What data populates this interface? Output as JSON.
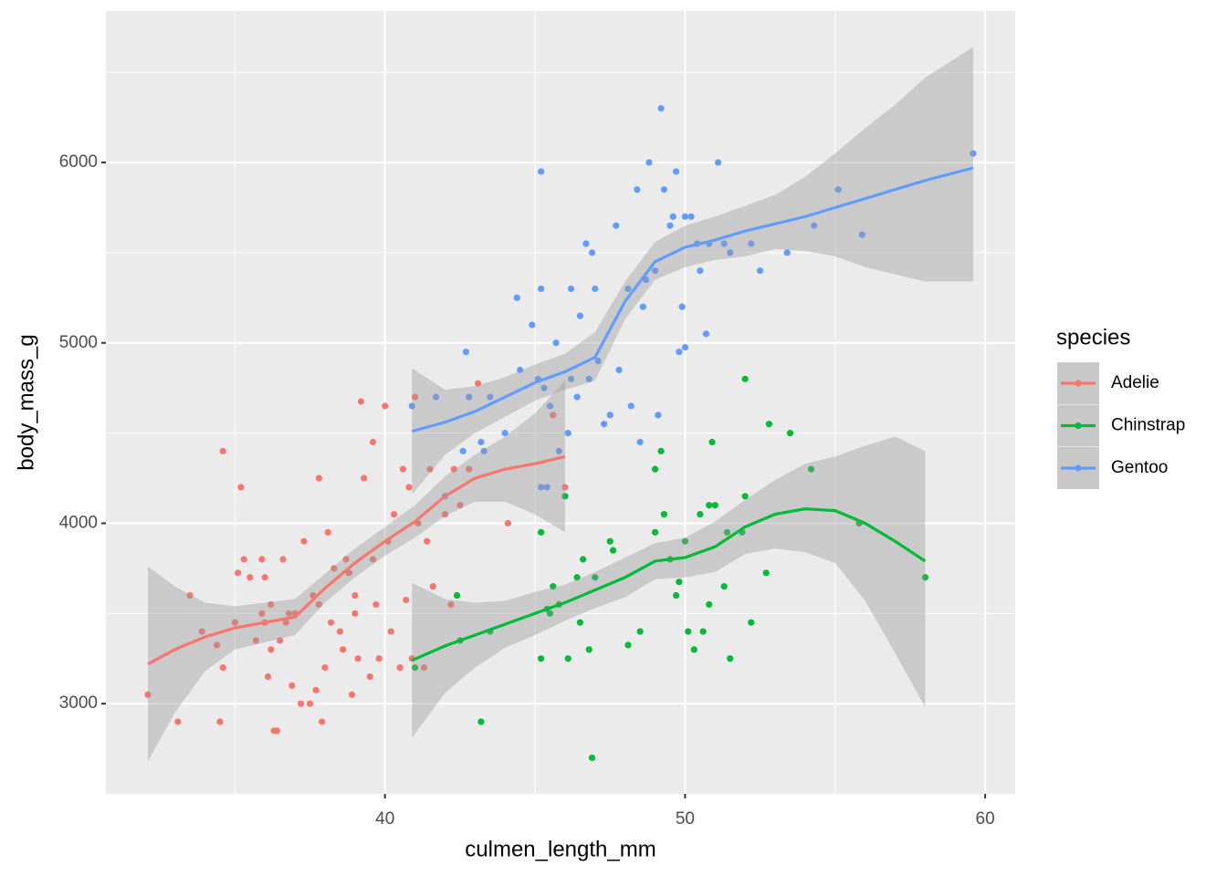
{
  "chart_data": {
    "type": "scatter",
    "xlabel": "culmen_length_mm",
    "ylabel": "body_mass_g",
    "legend_title": "species",
    "legend": "right",
    "xlim": [
      30.7,
      61.0
    ],
    "ylim": [
      2500,
      6840
    ],
    "xticks": [
      40,
      50,
      60
    ],
    "yticks": [
      3000,
      4000,
      5000,
      6000
    ],
    "xminor": [
      35,
      45,
      55
    ],
    "yminor": [
      3500,
      4500,
      5500,
      6500
    ],
    "grid": true,
    "series": [
      {
        "name": "Adelie",
        "color": "#F8766D",
        "x": [
          32.1,
          33.1,
          33.5,
          33.9,
          34.4,
          34.5,
          34.6,
          34.6,
          35.0,
          35.1,
          35.2,
          35.3,
          35.5,
          35.7,
          35.9,
          35.9,
          36.0,
          36.0,
          36.1,
          36.2,
          36.2,
          36.4,
          36.5,
          36.6,
          36.7,
          36.8,
          36.9,
          37.0,
          37.2,
          37.3,
          37.5,
          37.6,
          37.7,
          37.8,
          37.8,
          37.9,
          38.0,
          38.1,
          38.2,
          38.3,
          38.5,
          38.6,
          38.7,
          38.8,
          39.0,
          39.0,
          39.1,
          39.2,
          39.3,
          39.5,
          39.6,
          39.6,
          39.7,
          39.8,
          40.0,
          40.1,
          40.2,
          40.3,
          40.5,
          40.6,
          40.7,
          40.8,
          40.9,
          41.0,
          41.1,
          41.3,
          41.4,
          41.5,
          41.6,
          42.0,
          42.2,
          42.3,
          42.5,
          42.8,
          43.1,
          44.1,
          45.6,
          46.0,
          36.3,
          38.9
        ],
        "y": [
          3050,
          2900,
          3600,
          3400,
          3325,
          2900,
          3200,
          4400,
          3450,
          3725,
          4200,
          3800,
          3700,
          3350,
          3500,
          3800,
          3450,
          3700,
          3150,
          3300,
          3550,
          2850,
          3350,
          3800,
          3450,
          3500,
          3100,
          3500,
          3000,
          3900,
          3000,
          3600,
          3075,
          4250,
          3550,
          2900,
          3200,
          3950,
          3450,
          3750,
          3400,
          3300,
          3800,
          3725,
          3600,
          3500,
          3250,
          4675,
          4250,
          3150,
          4450,
          3800,
          3550,
          3250,
          4650,
          3900,
          3400,
          4050,
          3200,
          4300,
          3575,
          4200,
          3250,
          4700,
          4000,
          3200,
          3900,
          4300,
          3650,
          4050,
          3550,
          4300,
          4100,
          4300,
          4775,
          4000,
          4600,
          4200,
          2850,
          3050
        ],
        "fit": {
          "x": [
            32.1,
            33,
            34,
            35,
            36,
            37,
            38,
            39,
            40,
            41,
            42,
            43,
            44,
            45,
            46
          ],
          "y": [
            3220,
            3300,
            3370,
            3420,
            3450,
            3480,
            3640,
            3780,
            3900,
            4010,
            4150,
            4250,
            4300,
            4330,
            4370
          ],
          "lower": [
            2680,
            2950,
            3180,
            3300,
            3340,
            3380,
            3560,
            3700,
            3820,
            3920,
            4040,
            4120,
            4120,
            4050,
            3950
          ],
          "upper": [
            3760,
            3650,
            3560,
            3540,
            3560,
            3580,
            3720,
            3860,
            3980,
            4100,
            4260,
            4380,
            4480,
            4610,
            4790
          ]
        }
      },
      {
        "name": "Chinstrap",
        "color": "#00BA38",
        "x": [
          41.0,
          42.4,
          42.5,
          43.2,
          43.5,
          45.2,
          45.2,
          45.5,
          45.6,
          45.8,
          46.0,
          46.1,
          46.4,
          46.5,
          46.6,
          46.8,
          46.9,
          47.0,
          47.5,
          47.6,
          48.1,
          48.5,
          49.0,
          49.2,
          49.5,
          49.7,
          49.8,
          50.0,
          50.1,
          50.3,
          50.5,
          50.6,
          50.8,
          50.8,
          51.0,
          51.3,
          51.4,
          51.5,
          51.9,
          52.0,
          52.0,
          52.2,
          52.7,
          52.8,
          53.5,
          54.2,
          55.8,
          58.0,
          49.0,
          49.3,
          45.4,
          50.9
        ],
        "y": [
          3200,
          3600,
          3350,
          2900,
          3400,
          3950,
          3250,
          3500,
          3650,
          3550,
          4150,
          3250,
          3700,
          3450,
          3800,
          3300,
          2700,
          3700,
          3900,
          3850,
          3325,
          3400,
          3950,
          4400,
          3800,
          3600,
          3675,
          3900,
          3400,
          3300,
          4050,
          3400,
          4100,
          3550,
          4100,
          3650,
          3950,
          3250,
          3950,
          4800,
          4150,
          3450,
          3725,
          4550,
          4500,
          4300,
          4000,
          3700,
          4300,
          4050,
          3525,
          4450
        ],
        "fit": {
          "x": [
            40.9,
            42,
            43,
            44,
            45,
            46,
            47,
            48,
            49,
            50,
            51,
            52,
            53,
            54,
            55,
            56,
            57,
            58
          ],
          "y": [
            3240,
            3320,
            3380,
            3440,
            3500,
            3560,
            3630,
            3700,
            3790,
            3810,
            3870,
            3980,
            4050,
            4080,
            4070,
            4000,
            3900,
            3790
          ],
          "lower": [
            2810,
            3060,
            3200,
            3310,
            3380,
            3460,
            3530,
            3590,
            3690,
            3700,
            3730,
            3830,
            3860,
            3840,
            3780,
            3570,
            3280,
            2980
          ],
          "upper": [
            3670,
            3580,
            3560,
            3570,
            3620,
            3660,
            3730,
            3810,
            3890,
            3920,
            4010,
            4130,
            4240,
            4330,
            4370,
            4430,
            4480,
            4400
          ]
        }
      },
      {
        "name": "Gentoo",
        "color": "#619CFF",
        "x": [
          40.9,
          41.7,
          42.0,
          42.6,
          42.7,
          42.8,
          43.2,
          43.3,
          43.5,
          44.0,
          44.4,
          44.5,
          44.9,
          45.1,
          45.2,
          45.2,
          45.2,
          45.3,
          45.4,
          45.5,
          45.7,
          45.8,
          46.1,
          46.2,
          46.2,
          46.4,
          46.5,
          46.8,
          46.9,
          47.1,
          47.3,
          47.5,
          47.7,
          47.8,
          48.1,
          48.2,
          48.4,
          48.5,
          48.7,
          48.8,
          49.0,
          49.1,
          49.2,
          49.3,
          49.5,
          49.6,
          49.7,
          49.9,
          50.0,
          50.2,
          50.4,
          50.5,
          50.7,
          50.8,
          51.1,
          51.3,
          51.5,
          52.2,
          52.5,
          53.4,
          54.3,
          55.1,
          55.9,
          59.6,
          50.0,
          48.6,
          47.0,
          46.7,
          49.8
        ],
        "y": [
          4650,
          4700,
          4150,
          4400,
          4950,
          4700,
          4450,
          4400,
          4700,
          4500,
          5250,
          4850,
          5100,
          4800,
          5950,
          5300,
          4200,
          4750,
          4200,
          4650,
          5000,
          4400,
          4500,
          4800,
          5300,
          4700,
          5150,
          4800,
          5500,
          4900,
          4550,
          4600,
          5650,
          4850,
          5300,
          4650,
          5850,
          4450,
          5350,
          6000,
          5400,
          4600,
          6300,
          5850,
          5650,
          5700,
          5950,
          5200,
          5700,
          5700,
          5550,
          5400,
          5050,
          5550,
          6000,
          5550,
          5500,
          5550,
          5400,
          5500,
          5650,
          5850,
          5600,
          6050,
          4975,
          5200,
          5300,
          5550,
          4950
        ],
        "fit": {
          "x": [
            40.9,
            42,
            43,
            44,
            45,
            46,
            47,
            48,
            49,
            50,
            51,
            52,
            53,
            54,
            55,
            56,
            57,
            58,
            59.6
          ],
          "y": [
            4510,
            4560,
            4620,
            4700,
            4780,
            4840,
            4920,
            5230,
            5450,
            5530,
            5570,
            5620,
            5660,
            5700,
            5750,
            5800,
            5850,
            5900,
            5970
          ],
          "lower": [
            4160,
            4380,
            4500,
            4590,
            4680,
            4740,
            4790,
            5130,
            5350,
            5420,
            5460,
            5480,
            5520,
            5510,
            5480,
            5420,
            5380,
            5340,
            5340
          ],
          "upper": [
            4860,
            4740,
            4760,
            4810,
            4880,
            4940,
            5060,
            5340,
            5560,
            5650,
            5700,
            5760,
            5820,
            5920,
            6050,
            6190,
            6320,
            6470,
            6640
          ]
        }
      }
    ]
  }
}
